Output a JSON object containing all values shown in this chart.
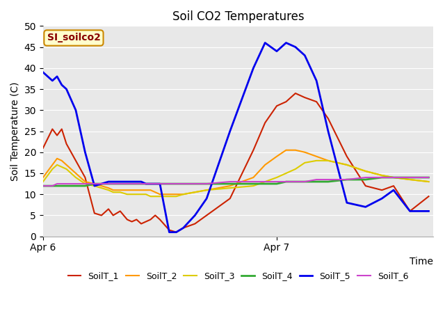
{
  "title": "Soil CO2 Temperatures",
  "xlabel": "Time",
  "ylabel": "Soil Temperature (C)",
  "ylim": [
    0,
    50
  ],
  "xlim": [
    0,
    1.67
  ],
  "xtick_positions": [
    0,
    1.0
  ],
  "xtick_labels": [
    "Apr 6",
    "Apr 7"
  ],
  "annotation_text": "SI_soilco2",
  "annotation_bg": "#ffffcc",
  "annotation_border": "#cc8800",
  "annotation_text_color": "#880000",
  "bg_color": "#e8e8e8",
  "fig_bg": "#ffffff",
  "series_order": [
    "SoilT_1",
    "SoilT_2",
    "SoilT_3",
    "SoilT_4",
    "SoilT_5",
    "SoilT_6"
  ],
  "series": {
    "SoilT_1": {
      "color": "#cc2200",
      "linewidth": 1.5,
      "x": [
        0.0,
        0.04,
        0.06,
        0.08,
        0.1,
        0.14,
        0.18,
        0.22,
        0.25,
        0.28,
        0.3,
        0.33,
        0.36,
        0.38,
        0.4,
        0.42,
        0.44,
        0.46,
        0.48,
        0.5,
        0.54,
        0.57,
        0.6,
        0.65,
        0.7,
        0.8,
        0.9,
        0.95,
        1.0,
        1.04,
        1.08,
        1.12,
        1.17,
        1.22,
        1.3,
        1.38,
        1.45,
        1.5,
        1.57,
        1.65
      ],
      "y": [
        21,
        25.5,
        24,
        25.5,
        22,
        18,
        14,
        5.5,
        5,
        6.5,
        5,
        6,
        4,
        3.5,
        4,
        3,
        3.5,
        4,
        5,
        4,
        1.5,
        1,
        2,
        3,
        5,
        9,
        20.5,
        27,
        31,
        32,
        34,
        33,
        32,
        28,
        19,
        12,
        11,
        12,
        6,
        9.5
      ]
    },
    "SoilT_2": {
      "color": "#ff9900",
      "linewidth": 1.5,
      "x": [
        0.0,
        0.04,
        0.06,
        0.08,
        0.1,
        0.14,
        0.18,
        0.22,
        0.25,
        0.28,
        0.3,
        0.33,
        0.36,
        0.38,
        0.4,
        0.42,
        0.44,
        0.46,
        0.48,
        0.5,
        0.54,
        0.57,
        0.6,
        0.65,
        0.7,
        0.8,
        0.9,
        0.95,
        1.0,
        1.04,
        1.08,
        1.12,
        1.17,
        1.22,
        1.3,
        1.38,
        1.45,
        1.5,
        1.57,
        1.65
      ],
      "y": [
        14,
        17,
        18.5,
        18,
        17,
        15,
        13,
        12.5,
        12,
        11.5,
        11,
        11,
        11,
        11,
        11,
        11,
        11,
        11,
        10.5,
        10,
        10,
        10,
        10,
        10.5,
        11,
        12,
        14,
        17,
        19,
        20.5,
        20.5,
        20,
        19,
        18,
        17,
        15.5,
        14.5,
        14,
        13.5,
        13
      ]
    },
    "SoilT_3": {
      "color": "#ddcc00",
      "linewidth": 1.5,
      "x": [
        0.0,
        0.04,
        0.06,
        0.08,
        0.1,
        0.14,
        0.18,
        0.22,
        0.25,
        0.28,
        0.3,
        0.33,
        0.36,
        0.38,
        0.4,
        0.42,
        0.44,
        0.46,
        0.48,
        0.5,
        0.54,
        0.57,
        0.6,
        0.65,
        0.7,
        0.8,
        0.9,
        0.95,
        1.0,
        1.04,
        1.08,
        1.12,
        1.17,
        1.22,
        1.3,
        1.38,
        1.45,
        1.5,
        1.57,
        1.65
      ],
      "y": [
        13,
        16,
        17,
        16.5,
        16,
        14,
        12.5,
        12,
        11.5,
        11,
        10.5,
        10.5,
        10,
        10,
        10,
        10,
        10,
        9.5,
        9.5,
        9.5,
        9.5,
        9.5,
        10,
        10.5,
        11,
        11.5,
        12,
        13,
        14,
        15,
        16,
        17.5,
        18,
        18,
        17,
        15.5,
        14.5,
        14,
        13.5,
        13
      ]
    },
    "SoilT_4": {
      "color": "#33aa33",
      "linewidth": 2.0,
      "x": [
        0.0,
        0.04,
        0.06,
        0.08,
        0.1,
        0.14,
        0.18,
        0.22,
        0.25,
        0.28,
        0.3,
        0.33,
        0.36,
        0.38,
        0.4,
        0.42,
        0.44,
        0.46,
        0.48,
        0.5,
        0.54,
        0.57,
        0.6,
        0.65,
        0.7,
        0.8,
        0.9,
        0.95,
        1.0,
        1.04,
        1.08,
        1.12,
        1.17,
        1.22,
        1.3,
        1.38,
        1.45,
        1.5,
        1.57,
        1.65
      ],
      "y": [
        12,
        12,
        12,
        12,
        12,
        12,
        12,
        12.5,
        12.5,
        12.5,
        12.5,
        12.5,
        12.5,
        12.5,
        12.5,
        12.5,
        12.5,
        12.5,
        12.5,
        12.5,
        12.5,
        12.5,
        12.5,
        12.5,
        12.5,
        12.5,
        12.5,
        12.5,
        12.5,
        13,
        13,
        13,
        13,
        13,
        13.5,
        13.5,
        14,
        14,
        14,
        14
      ]
    },
    "SoilT_5": {
      "color": "#0000ee",
      "linewidth": 2.0,
      "x": [
        0.0,
        0.04,
        0.06,
        0.08,
        0.1,
        0.14,
        0.18,
        0.22,
        0.25,
        0.28,
        0.3,
        0.33,
        0.36,
        0.38,
        0.4,
        0.42,
        0.44,
        0.46,
        0.48,
        0.5,
        0.54,
        0.57,
        0.6,
        0.65,
        0.7,
        0.8,
        0.9,
        0.95,
        1.0,
        1.04,
        1.08,
        1.12,
        1.17,
        1.22,
        1.3,
        1.38,
        1.45,
        1.5,
        1.57,
        1.65
      ],
      "y": [
        39,
        37,
        38,
        36,
        35,
        30,
        20,
        12,
        12.5,
        13,
        13,
        13,
        13,
        13,
        13,
        13,
        12.5,
        12.5,
        12.5,
        12.5,
        1,
        1,
        2,
        5,
        9,
        25,
        40,
        46,
        44,
        46,
        45,
        43,
        37,
        25,
        8,
        7,
        9,
        11,
        6,
        6
      ]
    },
    "SoilT_6": {
      "color": "#cc44cc",
      "linewidth": 1.5,
      "x": [
        0.0,
        0.04,
        0.06,
        0.08,
        0.1,
        0.14,
        0.18,
        0.22,
        0.25,
        0.28,
        0.3,
        0.33,
        0.36,
        0.38,
        0.4,
        0.42,
        0.44,
        0.46,
        0.48,
        0.5,
        0.54,
        0.57,
        0.6,
        0.65,
        0.7,
        0.8,
        0.9,
        0.95,
        1.0,
        1.04,
        1.08,
        1.12,
        1.17,
        1.22,
        1.3,
        1.38,
        1.45,
        1.5,
        1.57,
        1.65
      ],
      "y": [
        12,
        12,
        12.5,
        12.5,
        12.5,
        12.5,
        12.5,
        12.5,
        12.5,
        12.5,
        12.5,
        12.5,
        12.5,
        12.5,
        12.5,
        12.5,
        12.5,
        12.5,
        12.5,
        12.5,
        12.5,
        12.5,
        12.5,
        12.5,
        12.5,
        13,
        13,
        13,
        13,
        13,
        13,
        13,
        13.5,
        13.5,
        13.5,
        14,
        14,
        14,
        14,
        14
      ]
    }
  },
  "legend_order": [
    "SoilT_1",
    "SoilT_2",
    "SoilT_3",
    "SoilT_4",
    "SoilT_5",
    "SoilT_6"
  ]
}
